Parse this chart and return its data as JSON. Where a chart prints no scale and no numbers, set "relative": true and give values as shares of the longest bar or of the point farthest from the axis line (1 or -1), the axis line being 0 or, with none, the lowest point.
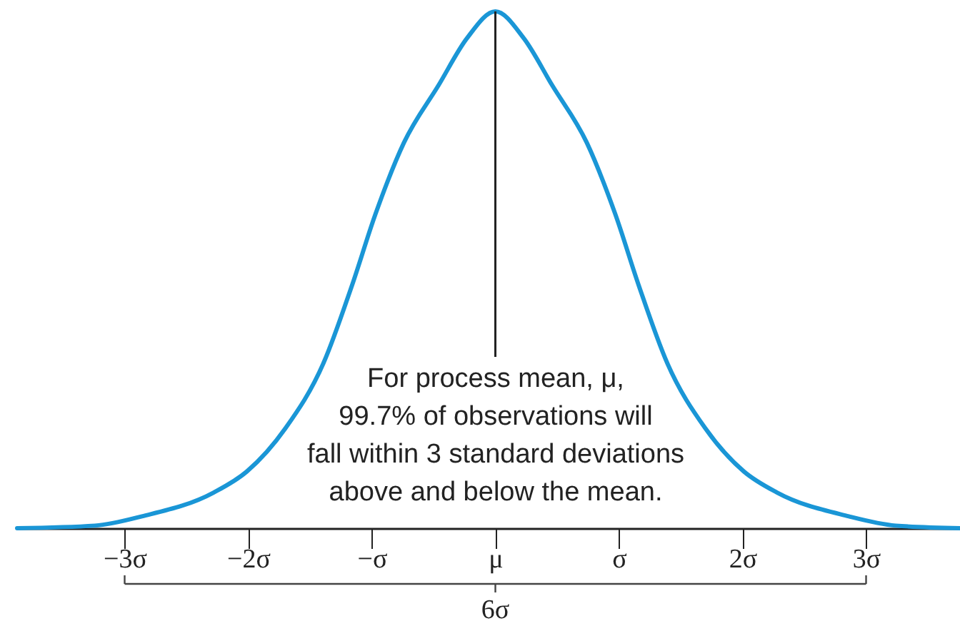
{
  "chart_data": {
    "type": "line",
    "relative": true,
    "tick_labels": "x",
    "x": [
      -3.87,
      -3.24,
      -2.86,
      -2.28,
      -2.01,
      -1.7,
      -1.39,
      -1.16,
      -0.97,
      -0.74,
      -0.46,
      -0.23,
      0,
      0.23,
      0.46,
      0.74,
      0.97,
      1.16,
      1.39,
      1.7,
      2.01,
      2.28,
      2.86,
      3.24,
      3.76
    ],
    "series": [
      {
        "color": "#1a96d6",
        "values": [
          0,
          0.005,
          0.023,
          0.069,
          0.11,
          0.193,
          0.32,
          0.47,
          0.608,
          0.746,
          0.857,
          0.948,
          1,
          0.948,
          0.857,
          0.746,
          0.608,
          0.47,
          0.32,
          0.193,
          0.11,
          0.069,
          0.023,
          0.005,
          0
        ]
      }
    ],
    "xlim": [
      -3.87,
      3.76
    ],
    "xticks": [
      {
        "value": -3,
        "label": "−3σ"
      },
      {
        "value": -2,
        "label": "−2σ"
      },
      {
        "value": -1,
        "label": "−σ"
      },
      {
        "value": 0,
        "label": "μ"
      },
      {
        "value": 1,
        "label": "σ"
      },
      {
        "value": 2,
        "label": "2σ"
      },
      {
        "value": 3,
        "label": "3σ"
      }
    ],
    "ref_lines": [
      {
        "axis": "x",
        "value": 0
      }
    ],
    "annotations": [
      "For process mean, μ,\n99.7% of observations will\nfall within 3 standard deviations\nabove and below the mean.",
      "6σ"
    ]
  }
}
